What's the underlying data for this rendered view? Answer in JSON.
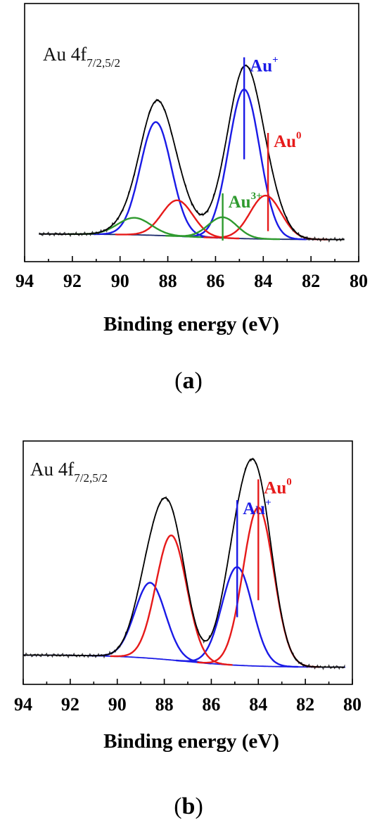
{
  "chart_data": [
    {
      "panel": "a",
      "type": "line",
      "caption": "a",
      "title": "Au 4f",
      "title_sub": "7/2,5/2",
      "xlabel": "Binding energy (eV)",
      "ylabel": "",
      "xlim": [
        94,
        80
      ],
      "ylim": [
        0,
        1.08
      ],
      "x_ticks": [
        "94",
        "92",
        "90",
        "88",
        "86",
        "84",
        "82",
        "80"
      ],
      "experimental_range": [
        93.4,
        80.6
      ],
      "background": {
        "color": "#1a2a6b",
        "left": 0.035,
        "right": 0.005,
        "center": 87.0,
        "width": 1.4
      },
      "series": [
        {
          "color": "#1a1ae6",
          "peaks": [
            {
              "center": 88.5,
              "height": 0.6,
              "width": 0.65
            },
            {
              "center": 84.8,
              "height": 0.79,
              "width": 0.65
            }
          ]
        },
        {
          "color": "#e61a1a",
          "peaks": [
            {
              "center": 87.6,
              "height": 0.19,
              "width": 0.65
            },
            {
              "center": 83.9,
              "height": 0.23,
              "width": 0.65
            }
          ]
        },
        {
          "color": "#2e9a2e",
          "peaks": [
            {
              "center": 89.4,
              "height": 0.09,
              "width": 0.7
            },
            {
              "center": 85.7,
              "height": 0.11,
              "width": 0.6
            }
          ]
        }
      ],
      "markers": [
        {
          "label": "Au",
          "sup": "+",
          "color": "#1a1ae6",
          "x": 84.8,
          "top": 0.97,
          "bottom": 0.43
        },
        {
          "label": "Au",
          "sup": "0",
          "color": "#e61a1a",
          "x": 83.8,
          "top": 0.57,
          "bottom": 0.05
        },
        {
          "label": "Au",
          "sup": "3+",
          "color": "#2e9a2e",
          "x": 85.7,
          "top": 0.25,
          "bottom": 0.0
        }
      ]
    },
    {
      "panel": "b",
      "type": "line",
      "caption": "b",
      "title": "Au 4f",
      "title_sub": "7/2,5/2",
      "xlabel": "Binding energy (eV)",
      "ylabel": "",
      "xlim": [
        94,
        80
      ],
      "ylim": [
        0,
        1.08
      ],
      "x_ticks": [
        "94",
        "92",
        "90",
        "88",
        "86",
        "84",
        "82",
        "80"
      ],
      "experimental_range": [
        94.0,
        80.3
      ],
      "background": {
        "color": "#1a1ae6",
        "left": 0.07,
        "right": 0.005,
        "center": 87.2,
        "width": 1.4
      },
      "series": [
        {
          "color": "#1a1ae6",
          "peaks": [
            {
              "center": 88.6,
              "height": 0.4,
              "width": 0.65
            },
            {
              "center": 84.9,
              "height": 0.52,
              "width": 0.65
            }
          ]
        },
        {
          "color": "#e61a1a",
          "peaks": [
            {
              "center": 87.7,
              "height": 0.66,
              "width": 0.65
            },
            {
              "center": 84.0,
              "height": 0.84,
              "width": 0.65
            }
          ]
        }
      ],
      "markers": [
        {
          "label": "Au",
          "sup": "+",
          "color": "#1a1ae6",
          "x": 84.9,
          "top": 0.89,
          "bottom": 0.27
        },
        {
          "label": "Au",
          "sup": "0",
          "color": "#e61a1a",
          "x": 84.0,
          "top": 1.0,
          "bottom": 0.36
        }
      ]
    }
  ]
}
